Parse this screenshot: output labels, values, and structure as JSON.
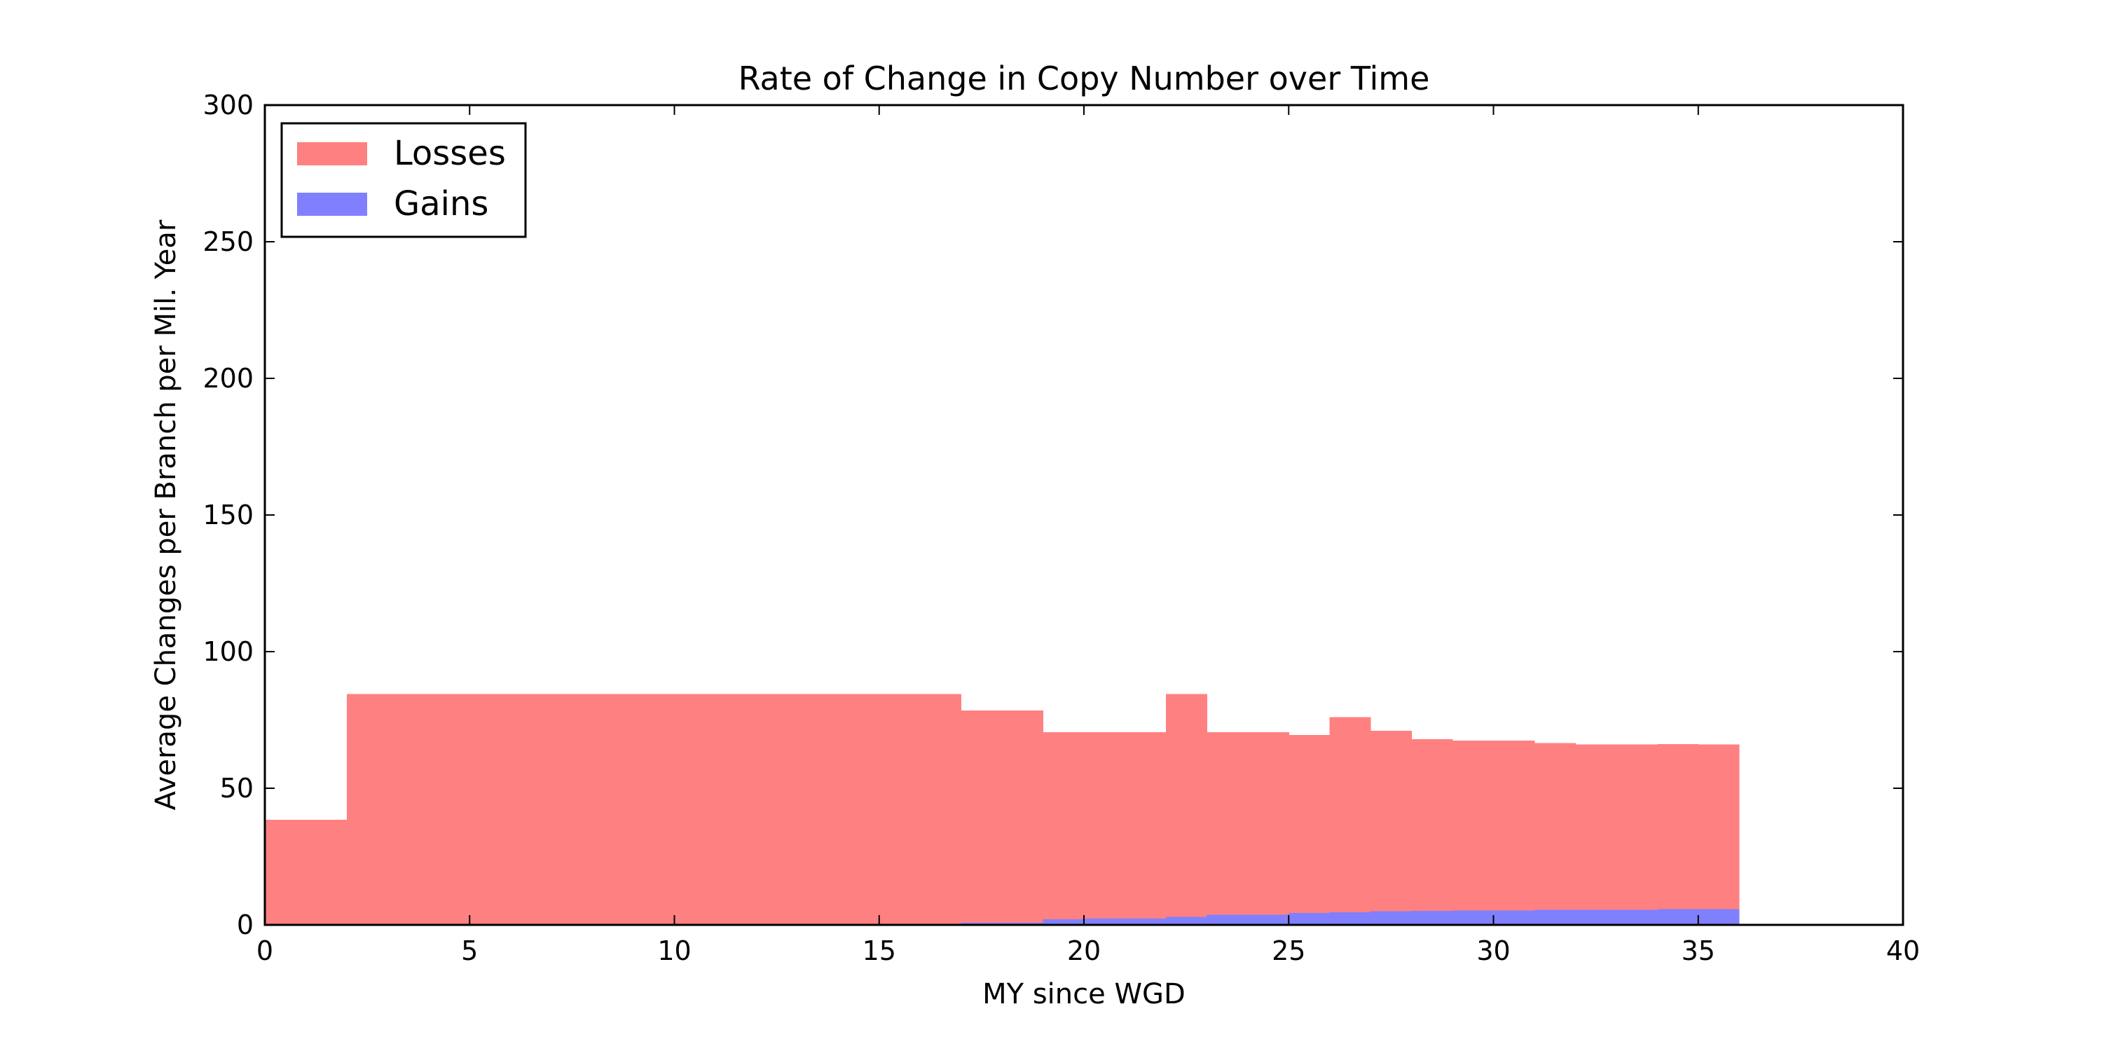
{
  "chart_data": {
    "type": "bar",
    "title": "Rate of Change in Copy Number over Time",
    "xlabel": "MY since WGD",
    "ylabel": "Average Changes per Branch per Mil. Year",
    "xlim": [
      0,
      40
    ],
    "ylim": [
      0,
      300
    ],
    "xticks": [
      0,
      5,
      10,
      15,
      20,
      25,
      30,
      35,
      40
    ],
    "yticks": [
      0,
      50,
      100,
      150,
      200,
      250,
      300
    ],
    "grid": false,
    "legend_position": "top-left",
    "series": [
      {
        "name": "Losses",
        "color": "#ff8080",
        "bins": [
          {
            "x0": 0,
            "x1": 2,
            "value": 38.5
          },
          {
            "x0": 2,
            "x1": 17,
            "value": 84.5
          },
          {
            "x0": 17,
            "x1": 19,
            "value": 78.5
          },
          {
            "x0": 19,
            "x1": 22,
            "value": 70.5
          },
          {
            "x0": 22,
            "x1": 23,
            "value": 84.5
          },
          {
            "x0": 23,
            "x1": 25,
            "value": 70.5
          },
          {
            "x0": 25,
            "x1": 26,
            "value": 69.5
          },
          {
            "x0": 26,
            "x1": 27,
            "value": 76
          },
          {
            "x0": 27,
            "x1": 28,
            "value": 71
          },
          {
            "x0": 28,
            "x1": 29,
            "value": 68
          },
          {
            "x0": 29,
            "x1": 31,
            "value": 67.5
          },
          {
            "x0": 31,
            "x1": 32,
            "value": 66.5
          },
          {
            "x0": 32,
            "x1": 34,
            "value": 66
          },
          {
            "x0": 34,
            "x1": 35,
            "value": 66.2
          },
          {
            "x0": 35,
            "x1": 36,
            "value": 66
          }
        ]
      },
      {
        "name": "Gains",
        "color": "#8080ff",
        "bins": [
          {
            "x0": 0,
            "x1": 17,
            "value": 0
          },
          {
            "x0": 17,
            "x1": 19,
            "value": 0.8
          },
          {
            "x0": 19,
            "x1": 20,
            "value": 2.0
          },
          {
            "x0": 20,
            "x1": 22,
            "value": 2.3
          },
          {
            "x0": 22,
            "x1": 23,
            "value": 3.0
          },
          {
            "x0": 23,
            "x1": 25,
            "value": 3.7
          },
          {
            "x0": 25,
            "x1": 26,
            "value": 4.3
          },
          {
            "x0": 26,
            "x1": 27,
            "value": 4.6
          },
          {
            "x0": 27,
            "x1": 28,
            "value": 5.0
          },
          {
            "x0": 28,
            "x1": 29,
            "value": 5.1
          },
          {
            "x0": 29,
            "x1": 31,
            "value": 5.3
          },
          {
            "x0": 31,
            "x1": 34,
            "value": 5.5
          },
          {
            "x0": 34,
            "x1": 36,
            "value": 5.8
          }
        ]
      }
    ]
  }
}
